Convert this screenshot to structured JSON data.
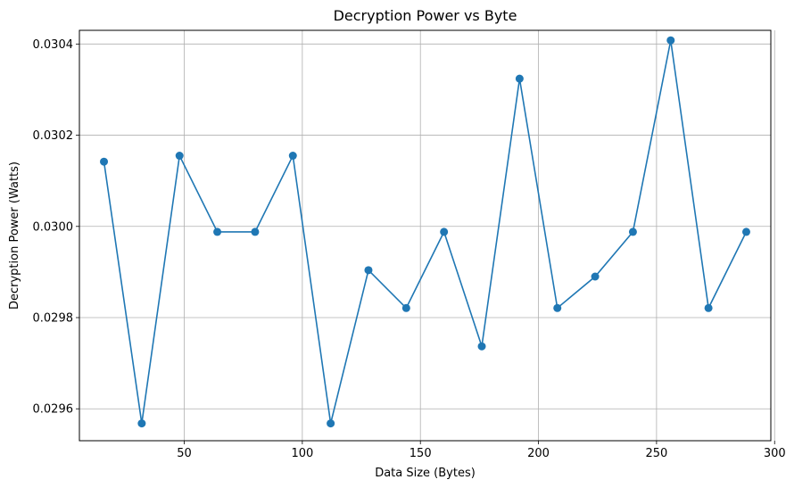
{
  "chart_data": {
    "type": "line",
    "title": "Decryption Power vs Byte",
    "xlabel": "Data Size (Bytes)",
    "ylabel": "Decryption Power (Watts)",
    "xlim": [
      5.6,
      298.4
    ],
    "ylim": [
      0.02953,
      0.03043
    ],
    "xticks": [
      50,
      100,
      150,
      200,
      250,
      300
    ],
    "xtick_labels": [
      "50",
      "100",
      "150",
      "200",
      "250",
      "300"
    ],
    "yticks": [
      0.0296,
      0.0298,
      0.03,
      0.0302,
      0.0304
    ],
    "ytick_labels": [
      "0.0296",
      "0.0298",
      "0.0300",
      "0.0302",
      "0.0304"
    ],
    "grid": true,
    "color": "#1f77b4",
    "series": [
      {
        "x": [
          16,
          32,
          48,
          64,
          80,
          96,
          112,
          128,
          144,
          160,
          176,
          192,
          208,
          224,
          240,
          256,
          272,
          288
        ],
        "y": [
          0.030142,
          0.029568,
          0.030155,
          0.029988,
          0.029988,
          0.030155,
          0.029568,
          0.029904,
          0.029821,
          0.029988,
          0.029737,
          0.030324,
          0.029821,
          0.02989,
          0.029988,
          0.030408,
          0.029821,
          0.029988
        ]
      }
    ]
  }
}
